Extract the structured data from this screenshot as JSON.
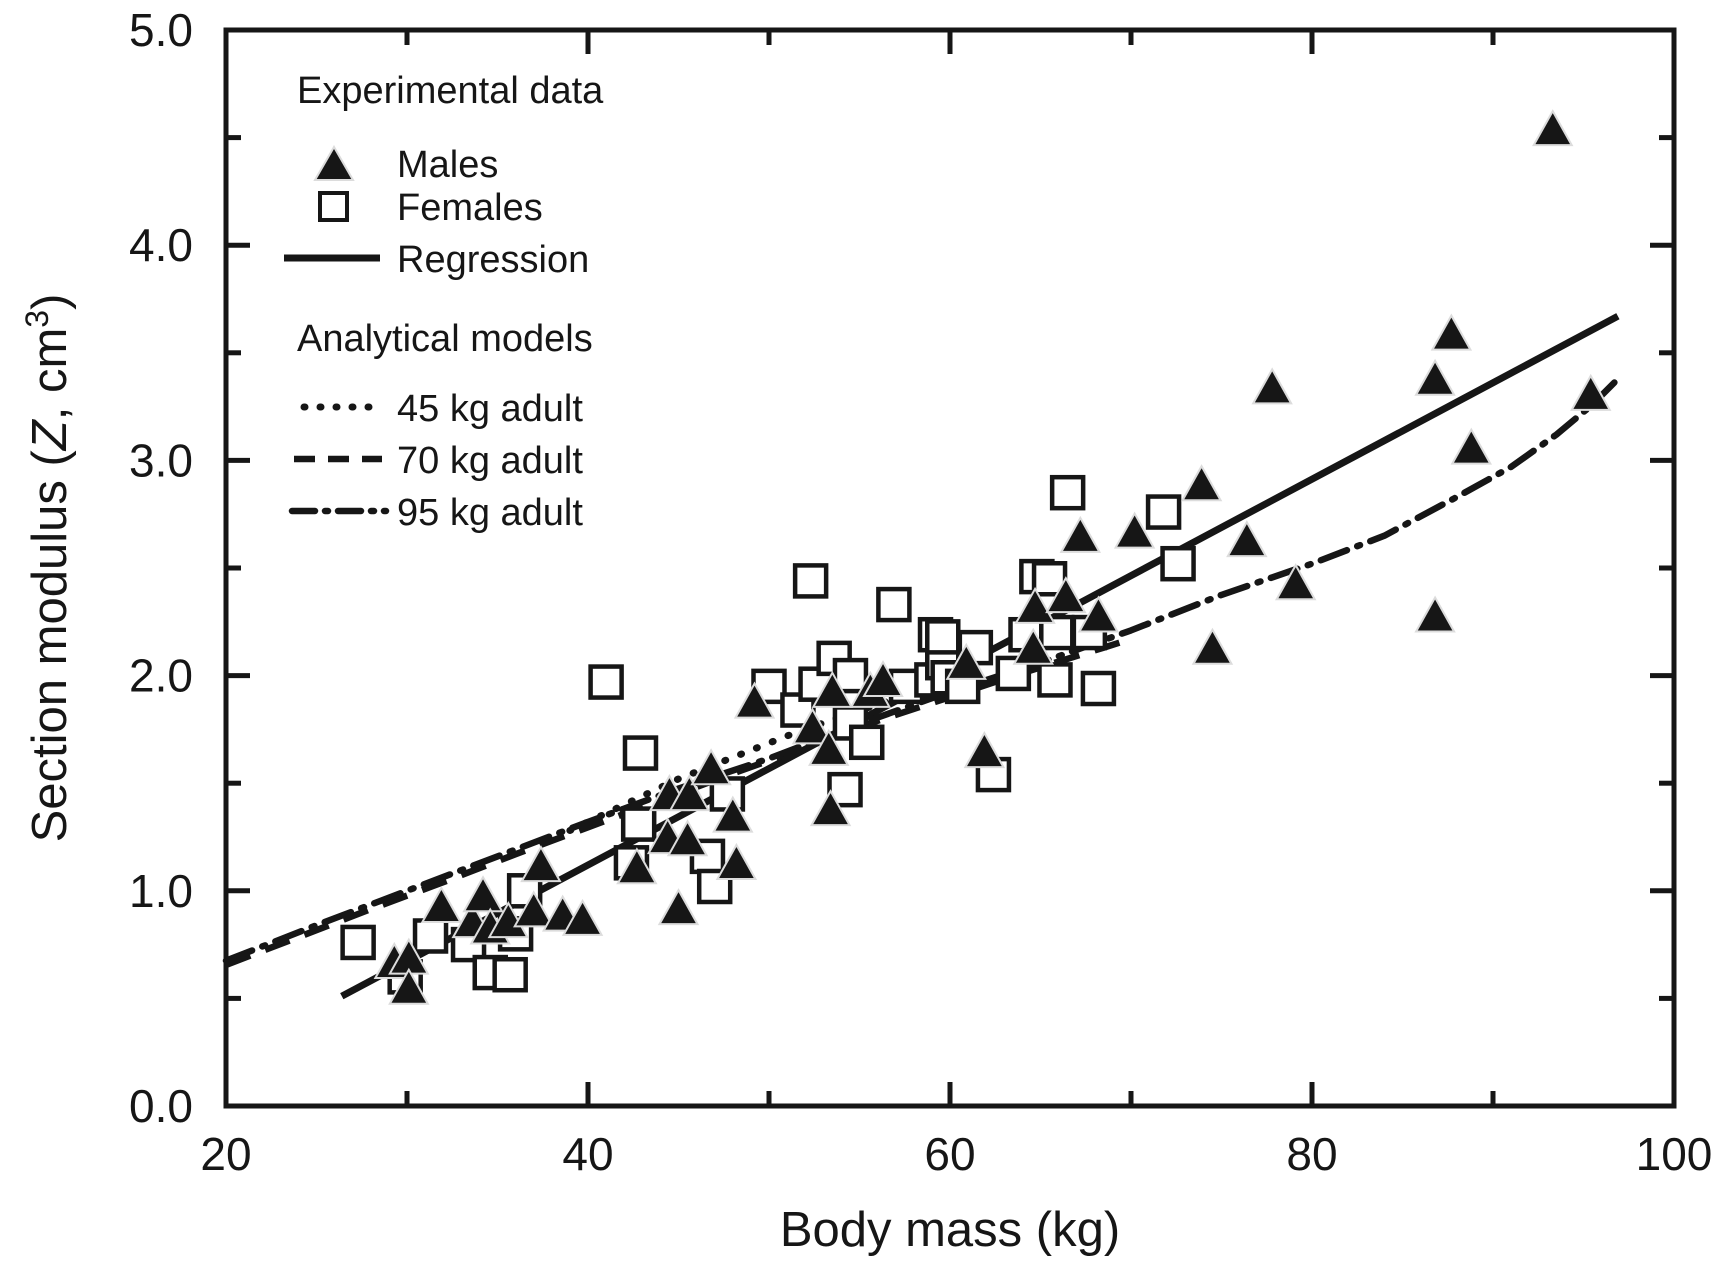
{
  "chart_data": {
    "type": "scatter",
    "title": "",
    "xlabel": "Body mass (kg)",
    "ylabel": "Section modulus (Z, cm³)",
    "ylabel_parts": {
      "prefix": "Section modulus (",
      "variable": "Z",
      "unit_prefix": ", cm",
      "superscript": "3",
      "suffix": ")"
    },
    "xlim": [
      20,
      100
    ],
    "ylim": [
      0.0,
      5.0
    ],
    "x_major_ticks": [
      20,
      40,
      60,
      80,
      100
    ],
    "x_major_tick_labels": [
      "20",
      "40",
      "60",
      "80",
      "100"
    ],
    "x_minor_step": 10,
    "y_major_ticks": [
      0,
      1,
      2,
      3,
      4,
      5
    ],
    "y_major_tick_labels": [
      "0.0",
      "1.0",
      "2.0",
      "3.0",
      "4.0",
      "5.0"
    ],
    "y_minor_step": 0.5,
    "grid": false,
    "box": true,
    "legend_position": "top-left-inside",
    "colors": {
      "ink": "#161616",
      "background": "#ffffff"
    },
    "legend": {
      "groups": [
        {
          "header": "Experimental data",
          "items": [
            {
              "label": "Males",
              "marker": "filled-triangle"
            },
            {
              "label": "Females",
              "marker": "open-square"
            },
            {
              "label": "Regression",
              "marker": "solid-line"
            }
          ]
        },
        {
          "header": "Analytical models",
          "items": [
            {
              "label": "45 kg adult",
              "marker": "dotted-line"
            },
            {
              "label": "70 kg adult",
              "marker": "dashed-line"
            },
            {
              "label": "95 kg adult",
              "marker": "dashdot-line"
            }
          ]
        }
      ]
    },
    "series": [
      {
        "name": "Males",
        "type": "scatter",
        "marker": "filled-triangle",
        "points": [
          [
            29.3,
            0.66
          ],
          [
            30.1,
            0.68
          ],
          [
            30.1,
            0.54
          ],
          [
            31.9,
            0.92
          ],
          [
            33.6,
            0.85
          ],
          [
            34.2,
            0.97
          ],
          [
            34.6,
            0.82
          ],
          [
            35.6,
            0.85
          ],
          [
            37.0,
            0.9
          ],
          [
            37.4,
            1.11
          ],
          [
            38.6,
            0.88
          ],
          [
            39.7,
            0.86
          ],
          [
            42.7,
            1.1
          ],
          [
            44.4,
            1.24
          ],
          [
            44.5,
            1.44
          ],
          [
            45.0,
            0.91
          ],
          [
            45.5,
            1.23
          ],
          [
            45.6,
            1.44
          ],
          [
            46.8,
            1.56
          ],
          [
            48.0,
            1.34
          ],
          [
            48.2,
            1.12
          ],
          [
            49.2,
            1.87
          ],
          [
            52.4,
            1.75
          ],
          [
            53.3,
            1.65
          ],
          [
            53.5,
            1.92
          ],
          [
            53.4,
            1.37
          ],
          [
            55.6,
            1.92
          ],
          [
            56.3,
            1.97
          ],
          [
            60.9,
            2.05
          ],
          [
            61.9,
            1.64
          ],
          [
            64.6,
            2.12
          ],
          [
            64.7,
            2.31
          ],
          [
            66.4,
            2.36
          ],
          [
            67.2,
            2.64
          ],
          [
            68.2,
            2.27
          ],
          [
            70.2,
            2.66
          ],
          [
            73.9,
            2.88
          ],
          [
            74.5,
            2.12
          ],
          [
            76.4,
            2.62
          ],
          [
            77.8,
            3.33
          ],
          [
            79.1,
            2.42
          ],
          [
            86.8,
            2.27
          ],
          [
            86.8,
            3.37
          ],
          [
            87.7,
            3.58
          ],
          [
            88.8,
            3.05
          ],
          [
            93.3,
            4.53
          ],
          [
            95.4,
            3.3
          ]
        ]
      },
      {
        "name": "Females",
        "type": "scatter",
        "marker": "open-square",
        "points": [
          [
            27.3,
            0.76
          ],
          [
            29.9,
            0.6
          ],
          [
            31.3,
            0.79
          ],
          [
            33.4,
            0.75
          ],
          [
            34.6,
            0.62
          ],
          [
            35.7,
            0.61
          ],
          [
            36.0,
            0.8
          ],
          [
            36.5,
            1.0
          ],
          [
            41.0,
            1.97
          ],
          [
            42.4,
            1.13
          ],
          [
            42.8,
            1.31
          ],
          [
            42.9,
            1.64
          ],
          [
            46.6,
            1.16
          ],
          [
            47.0,
            1.02
          ],
          [
            47.7,
            1.45
          ],
          [
            50.0,
            1.95
          ],
          [
            51.6,
            1.84
          ],
          [
            52.3,
            2.44
          ],
          [
            52.6,
            1.96
          ],
          [
            53.6,
            2.08
          ],
          [
            54.2,
            1.47
          ],
          [
            54.5,
            1.78
          ],
          [
            54.5,
            2.0
          ],
          [
            55.4,
            1.69
          ],
          [
            56.9,
            2.33
          ],
          [
            57.6,
            1.95
          ],
          [
            59.0,
            1.98
          ],
          [
            59.2,
            2.19
          ],
          [
            59.6,
            2.06
          ],
          [
            59.6,
            2.18
          ],
          [
            59.9,
            1.99
          ],
          [
            60.7,
            1.95
          ],
          [
            61.4,
            2.13
          ],
          [
            62.4,
            1.54
          ],
          [
            63.5,
            2.01
          ],
          [
            64.2,
            2.19
          ],
          [
            64.8,
            2.46
          ],
          [
            65.5,
            2.45
          ],
          [
            65.8,
            1.98
          ],
          [
            65.9,
            2.2
          ],
          [
            66.5,
            2.85
          ],
          [
            67.7,
            2.2
          ],
          [
            68.2,
            1.94
          ],
          [
            71.8,
            2.76
          ],
          [
            72.6,
            2.52
          ]
        ]
      },
      {
        "name": "Regression",
        "type": "line",
        "style": "solid",
        "points": [
          [
            26.4,
            0.51
          ],
          [
            96.9,
            3.67
          ]
        ]
      },
      {
        "name": "45 kg adult",
        "type": "line",
        "style": "dotted",
        "points": [
          [
            39.0,
            1.28
          ],
          [
            42,
            1.4
          ],
          [
            45,
            1.52
          ],
          [
            48,
            1.62
          ],
          [
            51,
            1.72
          ],
          [
            54,
            1.81
          ],
          [
            56.5,
            1.88
          ],
          [
            58.5,
            1.94
          ]
        ]
      },
      {
        "name": "70 kg adult",
        "type": "line",
        "style": "dashed",
        "points": [
          [
            20,
            0.655
          ],
          [
            24,
            0.785
          ],
          [
            28,
            0.915
          ],
          [
            32,
            1.04
          ],
          [
            36,
            1.17
          ],
          [
            40,
            1.295
          ],
          [
            44,
            1.42
          ],
          [
            48,
            1.545
          ],
          [
            52,
            1.665
          ],
          [
            56,
            1.79
          ],
          [
            60,
            1.9
          ],
          [
            63,
            1.985
          ],
          [
            66,
            2.065
          ],
          [
            68.5,
            2.13
          ],
          [
            70,
            2.17
          ]
        ]
      },
      {
        "name": "95 kg adult",
        "type": "line",
        "style": "dashdot",
        "points": [
          [
            20,
            0.675
          ],
          [
            25,
            0.84
          ],
          [
            30,
            1.0
          ],
          [
            35,
            1.16
          ],
          [
            40,
            1.32
          ],
          [
            45,
            1.475
          ],
          [
            50,
            1.615
          ],
          [
            55,
            1.775
          ],
          [
            60,
            1.925
          ],
          [
            65,
            2.06
          ],
          [
            70,
            2.21
          ],
          [
            75,
            2.375
          ],
          [
            80,
            2.52
          ],
          [
            84,
            2.65
          ],
          [
            88,
            2.83
          ],
          [
            91,
            2.97
          ],
          [
            93.5,
            3.12
          ],
          [
            95.5,
            3.26
          ],
          [
            96.8,
            3.37
          ]
        ]
      }
    ]
  }
}
